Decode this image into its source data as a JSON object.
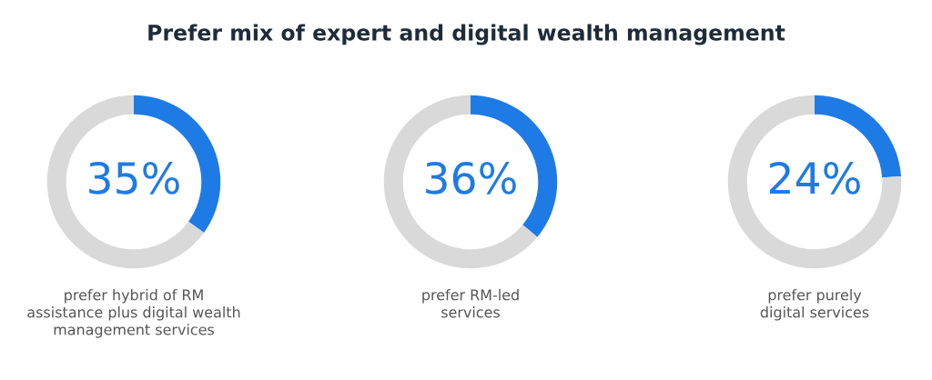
{
  "chart_data": [
    {
      "type": "donut",
      "title": "Prefer mix of expert and digital wealth management",
      "categories": [
        null,
        null
      ],
      "values": [
        35,
        65
      ],
      "colors": [
        "#1e7be6",
        "#d9d9d9"
      ],
      "value_labels": [
        "35%",
        null
      ],
      "annotations": [
        "prefer hybrid of RM\nassistance plus digital wealth\nmanagement services"
      ]
    },
    {
      "type": "donut",
      "categories": [
        null,
        null
      ],
      "values": [
        36,
        64
      ],
      "colors": [
        "#1e7be6",
        "#d9d9d9"
      ],
      "value_labels": [
        "36%",
        null
      ],
      "annotations": [
        "prefer RM-led\nservices"
      ]
    },
    {
      "type": "donut",
      "categories": [
        null,
        null
      ],
      "values": [
        24,
        76
      ],
      "colors": [
        "#1e7be6",
        "#d9d9d9"
      ],
      "value_labels": [
        "24%",
        null
      ],
      "annotations": [
        "prefer purely\ndigital services"
      ]
    }
  ]
}
